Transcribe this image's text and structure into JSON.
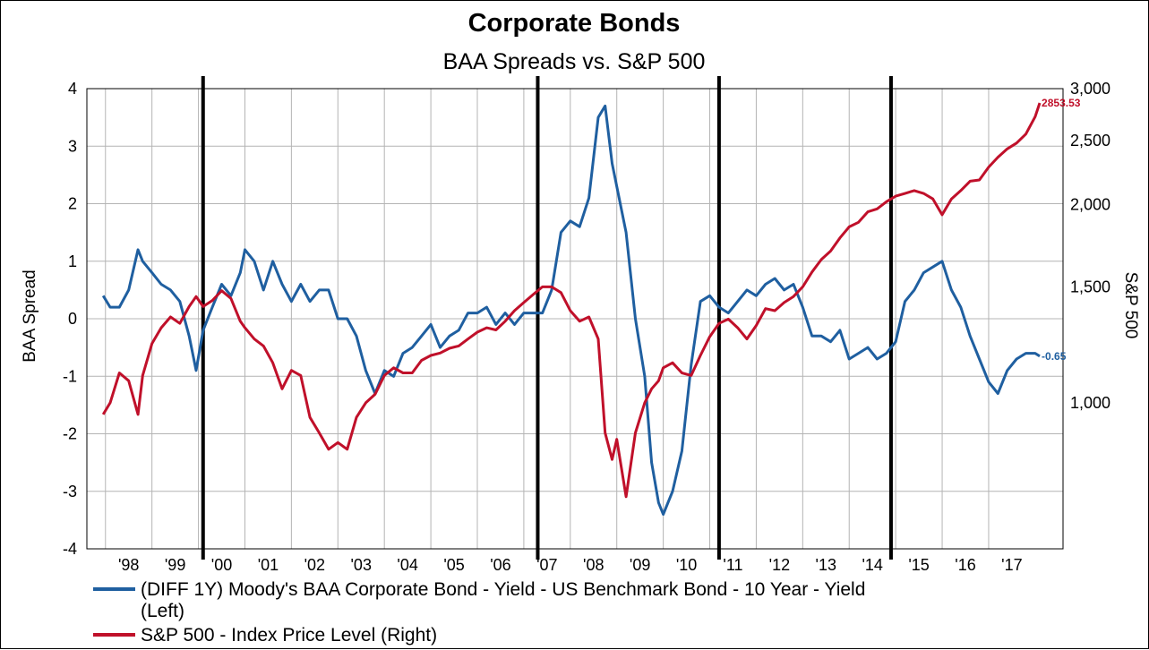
{
  "chart_data": {
    "type": "line",
    "title": "Corporate Bonds",
    "subtitle": "BAA Spreads vs. S&P 500",
    "ylabel_left": "BAA Spread",
    "ylabel_right": "S&P 500",
    "ylim_left": [
      -4,
      4
    ],
    "ylim_right_log": [
      600,
      3000
    ],
    "left_ticks": [
      "4",
      "3",
      "2",
      "1",
      "0",
      "-1",
      "-2",
      "-3",
      "-4"
    ],
    "left_tick_values": [
      4,
      3,
      2,
      1,
      0,
      -1,
      -2,
      -3,
      -4
    ],
    "right_ticks": [
      "3,000",
      "2,500",
      "2,000",
      "1,500",
      "1,000"
    ],
    "right_tick_values": [
      3000,
      2500,
      2000,
      1500,
      1000
    ],
    "x_tick_labels": [
      "'98",
      "'99",
      "'00",
      "'01",
      "'02",
      "'03",
      "'04",
      "'05",
      "'06",
      "'07",
      "'08",
      "'09",
      "'10",
      "'11",
      "'12",
      "'13",
      "'14",
      "'15",
      "'16",
      "'17"
    ],
    "x_tick_years": [
      1998,
      1999,
      2000,
      2001,
      2002,
      2003,
      2004,
      2005,
      2006,
      2007,
      2008,
      2009,
      2010,
      2011,
      2012,
      2013,
      2014,
      2015,
      2016,
      2017
    ],
    "x_range_years": [
      1997.6,
      2018.6
    ],
    "grid": true,
    "vertical_markers_years": [
      2000.1,
      2007.3,
      2011.2,
      2014.9
    ],
    "legend_position": "bottom",
    "series": [
      {
        "name": "(DIFF 1Y) Moody's BAA Corporate Bond - Yield - US Benchmark Bond - 10 Year - Yield (Left)",
        "axis": "left",
        "color": "#1f5fa0",
        "end_label": "-0.65",
        "x": [
          1997.95,
          1998.1,
          1998.3,
          1998.5,
          1998.7,
          1998.8,
          1999.0,
          1999.2,
          1999.4,
          1999.6,
          1999.8,
          1999.95,
          2000.1,
          2000.3,
          2000.5,
          2000.7,
          2000.9,
          2001.0,
          2001.2,
          2001.4,
          2001.6,
          2001.8,
          2002.0,
          2002.2,
          2002.4,
          2002.6,
          2002.8,
          2003.0,
          2003.2,
          2003.4,
          2003.6,
          2003.8,
          2004.0,
          2004.2,
          2004.4,
          2004.6,
          2004.8,
          2005.0,
          2005.2,
          2005.4,
          2005.6,
          2005.8,
          2006.0,
          2006.2,
          2006.4,
          2006.6,
          2006.8,
          2007.0,
          2007.2,
          2007.4,
          2007.6,
          2007.8,
          2008.0,
          2008.2,
          2008.4,
          2008.6,
          2008.75,
          2008.9,
          2009.0,
          2009.2,
          2009.4,
          2009.6,
          2009.75,
          2009.9,
          2010.0,
          2010.2,
          2010.4,
          2010.6,
          2010.8,
          2011.0,
          2011.2,
          2011.4,
          2011.6,
          2011.8,
          2012.0,
          2012.2,
          2012.4,
          2012.6,
          2012.8,
          2013.0,
          2013.2,
          2013.4,
          2013.6,
          2013.8,
          2014.0,
          2014.2,
          2014.4,
          2014.6,
          2014.8,
          2015.0,
          2015.2,
          2015.4,
          2015.6,
          2015.8,
          2016.0,
          2016.2,
          2016.4,
          2016.6,
          2016.8,
          2017.0,
          2017.2,
          2017.4,
          2017.6,
          2017.8,
          2018.0,
          2018.1
        ],
        "values": [
          0.4,
          0.2,
          0.2,
          0.5,
          1.2,
          1.0,
          0.8,
          0.6,
          0.5,
          0.3,
          -0.3,
          -0.9,
          -0.2,
          0.2,
          0.6,
          0.4,
          0.8,
          1.2,
          1.0,
          0.5,
          1.0,
          0.6,
          0.3,
          0.6,
          0.3,
          0.5,
          0.5,
          0.0,
          0.0,
          -0.3,
          -0.9,
          -1.3,
          -0.9,
          -1.0,
          -0.6,
          -0.5,
          -0.3,
          -0.1,
          -0.5,
          -0.3,
          -0.2,
          0.1,
          0.1,
          0.2,
          -0.1,
          0.1,
          -0.1,
          0.1,
          0.1,
          0.1,
          0.5,
          1.5,
          1.7,
          1.6,
          2.1,
          3.5,
          3.7,
          2.7,
          2.3,
          1.5,
          0.0,
          -1.0,
          -2.5,
          -3.2,
          -3.4,
          -3.0,
          -2.3,
          -0.8,
          0.3,
          0.4,
          0.2,
          0.1,
          0.3,
          0.5,
          0.4,
          0.6,
          0.7,
          0.5,
          0.6,
          0.2,
          -0.3,
          -0.3,
          -0.4,
          -0.2,
          -0.7,
          -0.6,
          -0.5,
          -0.7,
          -0.6,
          -0.4,
          0.3,
          0.5,
          0.8,
          0.9,
          1.0,
          0.5,
          0.2,
          -0.3,
          -0.7,
          -1.1,
          -1.3,
          -0.9,
          -0.7,
          -0.6,
          -0.6,
          -0.65
        ]
      },
      {
        "name": "S&P 500 - Index Price Level  (Right)",
        "axis": "right",
        "color": "#c0102a",
        "end_label": "2853.53",
        "x": [
          1997.95,
          1998.1,
          1998.3,
          1998.5,
          1998.7,
          1998.8,
          1999.0,
          1999.2,
          1999.4,
          1999.6,
          1999.8,
          1999.95,
          2000.1,
          2000.3,
          2000.5,
          2000.7,
          2000.9,
          2001.0,
          2001.2,
          2001.4,
          2001.6,
          2001.8,
          2002.0,
          2002.2,
          2002.4,
          2002.6,
          2002.8,
          2003.0,
          2003.2,
          2003.4,
          2003.6,
          2003.8,
          2004.0,
          2004.2,
          2004.4,
          2004.6,
          2004.8,
          2005.0,
          2005.2,
          2005.4,
          2005.6,
          2005.8,
          2006.0,
          2006.2,
          2006.4,
          2006.6,
          2006.8,
          2007.0,
          2007.2,
          2007.4,
          2007.6,
          2007.8,
          2008.0,
          2008.2,
          2008.4,
          2008.6,
          2008.75,
          2008.9,
          2009.0,
          2009.2,
          2009.4,
          2009.6,
          2009.75,
          2009.9,
          2010.0,
          2010.2,
          2010.4,
          2010.6,
          2010.8,
          2011.0,
          2011.2,
          2011.4,
          2011.6,
          2011.8,
          2012.0,
          2012.2,
          2012.4,
          2012.6,
          2012.8,
          2013.0,
          2013.2,
          2013.4,
          2013.6,
          2013.8,
          2014.0,
          2014.2,
          2014.4,
          2014.6,
          2014.8,
          2015.0,
          2015.2,
          2015.4,
          2015.6,
          2015.8,
          2016.0,
          2016.2,
          2016.4,
          2016.6,
          2016.8,
          2017.0,
          2017.2,
          2017.4,
          2017.6,
          2017.8,
          2018.0,
          2018.1
        ],
        "values": [
          960,
          1000,
          1110,
          1080,
          960,
          1100,
          1230,
          1300,
          1350,
          1320,
          1400,
          1450,
          1400,
          1430,
          1480,
          1440,
          1330,
          1300,
          1250,
          1220,
          1150,
          1050,
          1120,
          1100,
          950,
          900,
          850,
          870,
          850,
          950,
          1000,
          1030,
          1100,
          1130,
          1110,
          1110,
          1160,
          1180,
          1190,
          1210,
          1220,
          1250,
          1280,
          1300,
          1290,
          1330,
          1380,
          1420,
          1460,
          1500,
          1500,
          1470,
          1380,
          1330,
          1350,
          1250,
          900,
          820,
          880,
          720,
          900,
          1000,
          1050,
          1080,
          1130,
          1150,
          1110,
          1100,
          1180,
          1260,
          1320,
          1340,
          1300,
          1250,
          1310,
          1390,
          1380,
          1420,
          1450,
          1500,
          1580,
          1650,
          1700,
          1780,
          1850,
          1880,
          1950,
          1970,
          2020,
          2060,
          2080,
          2100,
          2080,
          2040,
          1930,
          2040,
          2100,
          2170,
          2180,
          2280,
          2360,
          2430,
          2480,
          2560,
          2720,
          2853.53
        ]
      }
    ]
  }
}
